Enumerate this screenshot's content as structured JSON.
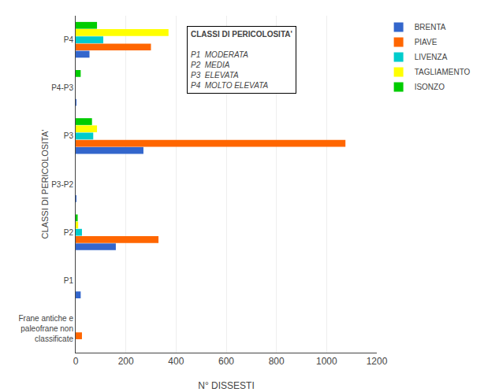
{
  "chart_data": {
    "type": "bar",
    "orientation": "horizontal",
    "categories": [
      "Frane antiche e\npaleofrane non\nclassificate",
      "P1",
      "P2",
      "P3-P2",
      "P3",
      "P4-P3",
      "P4"
    ],
    "series": [
      {
        "name": "BRENTA",
        "color": "#3366cc",
        "values": [
          0,
          20,
          160,
          1,
          270,
          1,
          55
        ]
      },
      {
        "name": "PIAVE",
        "color": "#ff6600",
        "values": [
          25,
          0,
          330,
          0,
          1075,
          0,
          300
        ]
      },
      {
        "name": "LIVENZA",
        "color": "#00cccc",
        "values": [
          0,
          0,
          25,
          0,
          70,
          0,
          110
        ]
      },
      {
        "name": "TAGLIAMENTO",
        "color": "#ffff00",
        "values": [
          0,
          0,
          10,
          0,
          85,
          0,
          370
        ]
      },
      {
        "name": "ISONZO",
        "color": "#00cc00",
        "values": [
          0,
          0,
          8,
          0,
          65,
          20,
          85
        ]
      }
    ],
    "xlabel": "N° DISSESTI",
    "ylabel": "CLASSI DI PERICOLOSITA'",
    "xlim": [
      0,
      1200
    ],
    "xticks": [
      0,
      200,
      400,
      600,
      800,
      1000,
      1200
    ],
    "grid": true,
    "legend": "upper right",
    "annotations": [
      "CLASSI DI PERICOLOSITA'\n\nP1  MODERATA\nP2  MEDIA\nP3  ELEVATA\nP4  MOLTO ELEVATA"
    ]
  }
}
